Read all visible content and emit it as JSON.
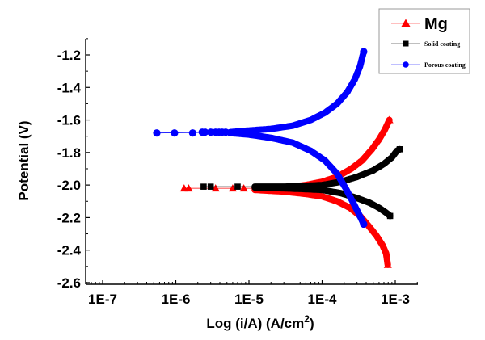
{
  "chart_data": {
    "type": "scatter",
    "title": "",
    "xlabel": "Log (i/A) (A/cm",
    "xlabel_superscript": "2",
    "xlabel_close": ")",
    "ylabel": "Potential (V)",
    "xscale": "log",
    "xlim": [
      8e-08,
      0.0017
    ],
    "ylim": [
      -2.6,
      -1.1
    ],
    "x_ticks": [
      1e-07,
      1e-06,
      1e-05,
      0.0001,
      0.001
    ],
    "x_tick_labels": [
      "1E-7",
      "1E-6",
      "1E-5",
      "1E-4",
      "1E-3"
    ],
    "y_ticks": [
      -1.2,
      -1.4,
      -1.6,
      -1.8,
      -2.0,
      -2.2,
      -2.4,
      -2.6
    ],
    "y_tick_labels": [
      "-1.2",
      "-1.4",
      "-1.6",
      "-1.8",
      "-2.0",
      "-2.2",
      "-2.4",
      "-2.6"
    ],
    "grid": false,
    "legend_position": "top-right",
    "series": [
      {
        "name": "Mg",
        "color": "#ff0000",
        "marker": "triangle",
        "corrosion_potential": -2.02,
        "sparse_points": [
          [
            1.3e-06,
            -2.02
          ],
          [
            1.5e-06,
            -2.02
          ],
          [
            3.5e-06,
            -2.02
          ],
          [
            6e-06,
            -2.02
          ],
          [
            8.5e-06,
            -2.02
          ]
        ],
        "anodic": [
          [
            1.2e-05,
            -2.02
          ],
          [
            3e-05,
            -2.015
          ],
          [
            6e-05,
            -2.0
          ],
          [
            0.0001,
            -1.98
          ],
          [
            0.00016,
            -1.95
          ],
          [
            0.00025,
            -1.9
          ],
          [
            0.00035,
            -1.85
          ],
          [
            0.00048,
            -1.78
          ],
          [
            0.0006,
            -1.72
          ],
          [
            0.00072,
            -1.66
          ],
          [
            0.00083,
            -1.6
          ]
        ],
        "cathodic": [
          [
            1.2e-05,
            -2.03
          ],
          [
            3e-05,
            -2.04
          ],
          [
            6e-05,
            -2.055
          ],
          [
            0.0001,
            -2.07
          ],
          [
            0.00016,
            -2.1
          ],
          [
            0.00024,
            -2.14
          ],
          [
            0.00033,
            -2.19
          ],
          [
            0.00043,
            -2.25
          ],
          [
            0.00055,
            -2.31
          ],
          [
            0.00067,
            -2.37
          ],
          [
            0.00075,
            -2.42
          ],
          [
            0.00079,
            -2.49
          ]
        ]
      },
      {
        "name": "Solid coating",
        "color": "#000000",
        "marker": "square",
        "corrosion_potential": -2.01,
        "sparse_points": [
          [
            2.4e-06,
            -2.01
          ],
          [
            3e-06,
            -2.01
          ],
          [
            7e-06,
            -2.01
          ]
        ],
        "anodic": [
          [
            1.2e-05,
            -2.01
          ],
          [
            3e-05,
            -2.01
          ],
          [
            6e-05,
            -2.005
          ],
          [
            0.0001,
            -2.0
          ],
          [
            0.00018,
            -1.98
          ],
          [
            0.0003,
            -1.95
          ],
          [
            0.0005,
            -1.91
          ],
          [
            0.0007,
            -1.87
          ],
          [
            0.0009,
            -1.83
          ],
          [
            0.00105,
            -1.79
          ],
          [
            0.00115,
            -1.78
          ]
        ],
        "cathodic": [
          [
            1.2e-05,
            -2.015
          ],
          [
            3e-05,
            -2.02
          ],
          [
            6e-05,
            -2.025
          ],
          [
            0.0001,
            -2.03
          ],
          [
            0.00018,
            -2.05
          ],
          [
            0.0003,
            -2.08
          ],
          [
            0.00045,
            -2.11
          ],
          [
            0.0006,
            -2.14
          ],
          [
            0.00075,
            -2.17
          ],
          [
            0.00085,
            -2.19
          ]
        ]
      },
      {
        "name": "Porous coating",
        "color": "#0000ff",
        "marker": "circle",
        "corrosion_potential": -1.68,
        "sparse_points": [
          [
            5.5e-07,
            -1.68
          ],
          [
            9.6e-07,
            -1.68
          ],
          [
            1.7e-06,
            -1.68
          ],
          [
            2.3e-06,
            -1.675
          ],
          [
            2.5e-06,
            -1.675
          ],
          [
            3e-06,
            -1.675
          ],
          [
            3.5e-06,
            -1.675
          ],
          [
            3.9e-06,
            -1.675
          ],
          [
            4.3e-06,
            -1.675
          ],
          [
            4.8e-06,
            -1.675
          ]
        ],
        "anodic": [
          [
            5.5e-06,
            -1.675
          ],
          [
            1e-05,
            -1.665
          ],
          [
            2e-05,
            -1.655
          ],
          [
            4e-05,
            -1.635
          ],
          [
            7e-05,
            -1.6
          ],
          [
            0.00011,
            -1.555
          ],
          [
            0.00016,
            -1.5
          ],
          [
            0.00022,
            -1.43
          ],
          [
            0.00028,
            -1.35
          ],
          [
            0.00033,
            -1.27
          ],
          [
            0.00037,
            -1.18
          ]
        ],
        "cathodic": [
          [
            5.5e-06,
            -1.68
          ],
          [
            1e-05,
            -1.69
          ],
          [
            2e-05,
            -1.71
          ],
          [
            4e-05,
            -1.74
          ],
          [
            7e-05,
            -1.79
          ],
          [
            0.00011,
            -1.85
          ],
          [
            0.00016,
            -1.93
          ],
          [
            0.00021,
            -2.02
          ],
          [
            0.00026,
            -2.1
          ],
          [
            0.00032,
            -2.18
          ],
          [
            0.00037,
            -2.24
          ]
        ]
      }
    ]
  },
  "legend": {
    "items": [
      {
        "label": "Mg",
        "size": "large"
      },
      {
        "label": "Solid coating",
        "size": "small"
      },
      {
        "label": "Porous coating",
        "size": "small"
      }
    ]
  }
}
